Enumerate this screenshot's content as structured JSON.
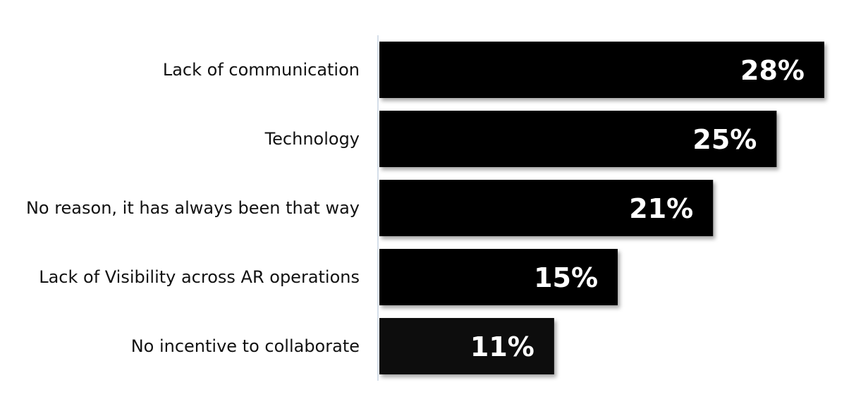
{
  "chart_data": {
    "type": "bar",
    "orientation": "horizontal",
    "categories": [
      "Lack of communication",
      "Technology",
      "No reason, it has always been that way",
      "Lack of Visibility across AR operations",
      "No incentive to collaborate"
    ],
    "values": [
      28,
      25,
      21,
      15,
      11
    ],
    "value_labels": [
      "28%",
      "25%",
      "21%",
      "15%",
      "11%"
    ],
    "xlim": [
      0,
      28
    ],
    "grid": false,
    "legend": "none",
    "colors": {
      "bars": [
        "#000000",
        "#000000",
        "#000000",
        "#000000",
        "#0d0d0d"
      ],
      "axis": "#d6dfea",
      "label": "#ffffff"
    }
  }
}
